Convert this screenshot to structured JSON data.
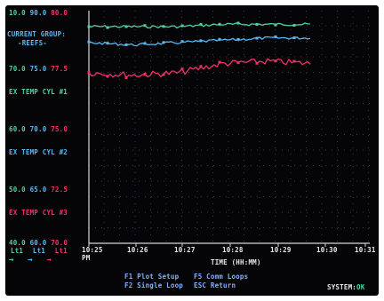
{
  "axis_groups": [
    {
      "min": "10.0",
      "mid": "90.0",
      "max": "80.0"
    },
    {
      "min": "70.0",
      "mid": "75.0",
      "max": "77.5",
      "label": "EX TEMP CYL #1"
    },
    {
      "min": "60.0",
      "mid": "70.0",
      "max": "75.0",
      "label": "EX TEMP CYL #2"
    },
    {
      "min": "50.0",
      "mid": "65.0",
      "max": "72.5",
      "label": "EX TEMP CYL #3"
    },
    {
      "min": "40.0",
      "mid": "60.0",
      "max": "70.0"
    }
  ],
  "current_group": {
    "title": "CURRENT GROUP:",
    "name": "-REEFS-"
  },
  "legend_units": [
    "Lt1",
    "Lt1",
    "Lt1"
  ],
  "time_axis": {
    "ticks": [
      "10:25",
      "10:26",
      "10:27",
      "10:28",
      "10:29",
      "10:30",
      "10:31"
    ],
    "title": "TIME (HH:MM)",
    "period": "PM"
  },
  "menu": {
    "f1": "F1 Plot Setup",
    "f2": "F2 Single Loop",
    "f5": "F5 Comm Loops",
    "esc": "ESC Return"
  },
  "status": {
    "label": "SYSTEM:",
    "value": "OK"
  },
  "colors": {
    "green": "#4fd1a0",
    "cyan": "#5ab8f0",
    "red": "#f0306a",
    "grid": "#3a3a52"
  },
  "chart_data": {
    "type": "line",
    "x": [
      "10:25",
      "10:26",
      "10:27",
      "10:28",
      "10:29",
      "10:30"
    ],
    "series": [
      {
        "values": [
          76,
          76,
          76,
          77,
          77,
          77
        ]
      },
      {
        "values": [
          72,
          71,
          72,
          73,
          74,
          74
        ]
      },
      {
        "values": [
          67,
          66,
          67,
          71,
          72,
          71
        ]
      }
    ]
  }
}
